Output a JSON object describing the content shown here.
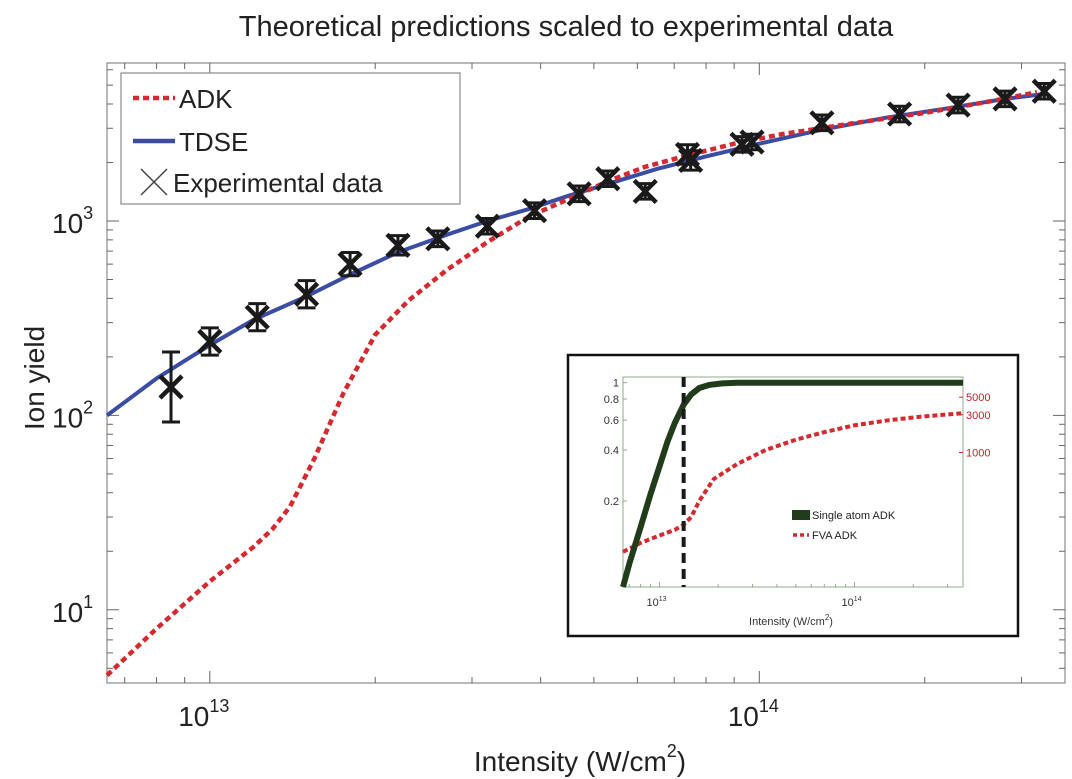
{
  "chart_data": [
    {
      "type": "line",
      "title": "Theoretical predictions scaled to experimental data",
      "xlabel": "Intensity (W/cm2)",
      "xlabel_main": "Intensity (W/cm",
      "xlabel_sup": "2",
      "xlabel_tail": ")",
      "ylabel": "Ion yield",
      "xscale": "log",
      "yscale": "log",
      "xlim": [
        6500000000000.0,
        360000000000000.0
      ],
      "ylim": [
        4.2,
        6500
      ],
      "x_ticks": [
        {
          "base": "10",
          "exp": "13",
          "value": 10000000000000.0
        },
        {
          "base": "10",
          "exp": "14",
          "value": 100000000000000.0
        }
      ],
      "y_ticks": [
        {
          "base": "10",
          "exp": "1",
          "value": 10
        },
        {
          "base": "10",
          "exp": "2",
          "value": 100
        },
        {
          "base": "10",
          "exp": "3",
          "value": 1000
        }
      ],
      "legend_position": "top-left",
      "series": [
        {
          "name": "ADK",
          "style": "dashed",
          "color": "#d42a2f",
          "x": [
            6500000000000.0,
            8000000000000.0,
            10000000000000.0,
            12000000000000.0,
            13000000000000.0,
            14000000000000.0,
            15500000000000.0,
            17500000000000.0,
            20000000000000.0,
            23000000000000.0,
            27000000000000.0,
            32000000000000.0,
            38000000000000.0,
            45000000000000.0,
            53000000000000.0,
            62000000000000.0,
            75000000000000.0,
            90000000000000.0,
            110000000000000.0,
            150000000000000.0,
            200000000000000.0,
            260000000000000.0,
            320000000000000.0
          ],
          "y": [
            4.6,
            8,
            14,
            21,
            26,
            34,
            60,
            130,
            260,
            390,
            560,
            780,
            1050,
            1300,
            1600,
            1900,
            2200,
            2500,
            2800,
            3200,
            3600,
            4100,
            4600
          ]
        },
        {
          "name": "TDSE",
          "style": "solid",
          "color": "#3b4ca4",
          "x": [
            6500000000000.0,
            8000000000000.0,
            10000000000000.0,
            12000000000000.0,
            15000000000000.0,
            18000000000000.0,
            22000000000000.0,
            27000000000000.0,
            32000000000000.0,
            38000000000000.0,
            45000000000000.0,
            55000000000000.0,
            65000000000000.0,
            80000000000000.0,
            100000000000000.0,
            130000000000000.0,
            170000000000000.0,
            220000000000000.0,
            280000000000000.0,
            330000000000000.0
          ],
          "y": [
            100,
            155,
            230,
            310,
            410,
            530,
            690,
            850,
            1000,
            1150,
            1350,
            1600,
            1850,
            2150,
            2500,
            2950,
            3400,
            3800,
            4250,
            4500
          ]
        },
        {
          "name": "Experimental data",
          "style": "markers",
          "color": "#1a1a1a",
          "x": [
            8500000000000.0,
            10000000000000.0,
            12200000000000.0,
            15000000000000.0,
            18000000000000.0,
            22000000000000.0,
            26000000000000.0,
            32000000000000.0,
            39000000000000.0,
            47000000000000.0,
            53000000000000.0,
            62000000000000.0,
            74000000000000.0,
            75000000000000.0,
            93000000000000.0,
            97000000000000.0,
            130000000000000.0,
            180000000000000.0,
            230000000000000.0,
            280000000000000.0,
            330000000000000.0
          ],
          "y": [
            140,
            240,
            320,
            420,
            600,
            750,
            810,
            940,
            1130,
            1380,
            1650,
            1420,
            2200,
            2050,
            2480,
            2550,
            3200,
            3550,
            3950,
            4250,
            4650
          ],
          "err": [
            0.18,
            0.07,
            0.07,
            0.07,
            0.06,
            0.05,
            0.04,
            0.04,
            0.04,
            0.04,
            0.04,
            0.04,
            0.05,
            0.05,
            0.04,
            0.04,
            0.04,
            0.04,
            0.04,
            0.04,
            0.04
          ]
        }
      ]
    },
    {
      "type": "line",
      "title": "",
      "xlabel": "Intensity (W/cm2)",
      "xlabel_main": "Intensity (W/cm",
      "xlabel_sup": "2",
      "xlabel_tail": ")",
      "xscale": "log",
      "xlim": [
        6500000000000.0,
        360000000000000.0
      ],
      "x_ticks": [
        {
          "base": "10",
          "exp": "13",
          "value": 10000000000000.0
        },
        {
          "base": "10",
          "exp": "14",
          "value": 100000000000000.0
        }
      ],
      "left_ylim": [
        0.062,
        1.08
      ],
      "left_yscale": "log",
      "left_ticks": [
        "0.2",
        "0.4",
        "0.6",
        "0.8",
        "1"
      ],
      "right_ticks": [
        "1000",
        "3000",
        "5000"
      ],
      "right_yscale": "log",
      "vline_x": 13300000000000.0,
      "legend_position": "center-right",
      "series": [
        {
          "name": "Single atom ADK",
          "style": "solid",
          "color": "#213c1b",
          "x": [
            6500000000000.0,
            7000000000000.0,
            8000000000000.0,
            9000000000000.0,
            10000000000000.0,
            11000000000000.0,
            12000000000000.0,
            13300000000000.0,
            14500000000000.0,
            16000000000000.0,
            18000000000000.0,
            21000000000000.0,
            25000000000000.0,
            30000000000000.0,
            50000000000000.0,
            100000000000000.0,
            200000000000000.0,
            360000000000000.0
          ],
          "y": [
            0.062,
            0.085,
            0.14,
            0.22,
            0.32,
            0.45,
            0.58,
            0.74,
            0.85,
            0.93,
            0.97,
            0.99,
            1.0,
            1.0,
            1.0,
            1.0,
            1.0,
            1.0
          ]
        },
        {
          "name": "FVA ADK",
          "style": "dashed",
          "color": "#d42a2f",
          "x": [
            6500000000000.0,
            8000000000000.0,
            10000000000000.0,
            12000000000000.0,
            13300000000000.0,
            14500000000000.0,
            16000000000000.0,
            19000000000000.0,
            25000000000000.0,
            35000000000000.0,
            50000000000000.0,
            70000000000000.0,
            100000000000000.0,
            150000000000000.0,
            220000000000000.0,
            360000000000000.0
          ],
          "y": [
            0.1,
            0.113,
            0.125,
            0.135,
            0.145,
            0.16,
            0.2,
            0.27,
            0.33,
            0.4,
            0.46,
            0.51,
            0.56,
            0.6,
            0.63,
            0.66
          ]
        }
      ]
    }
  ]
}
